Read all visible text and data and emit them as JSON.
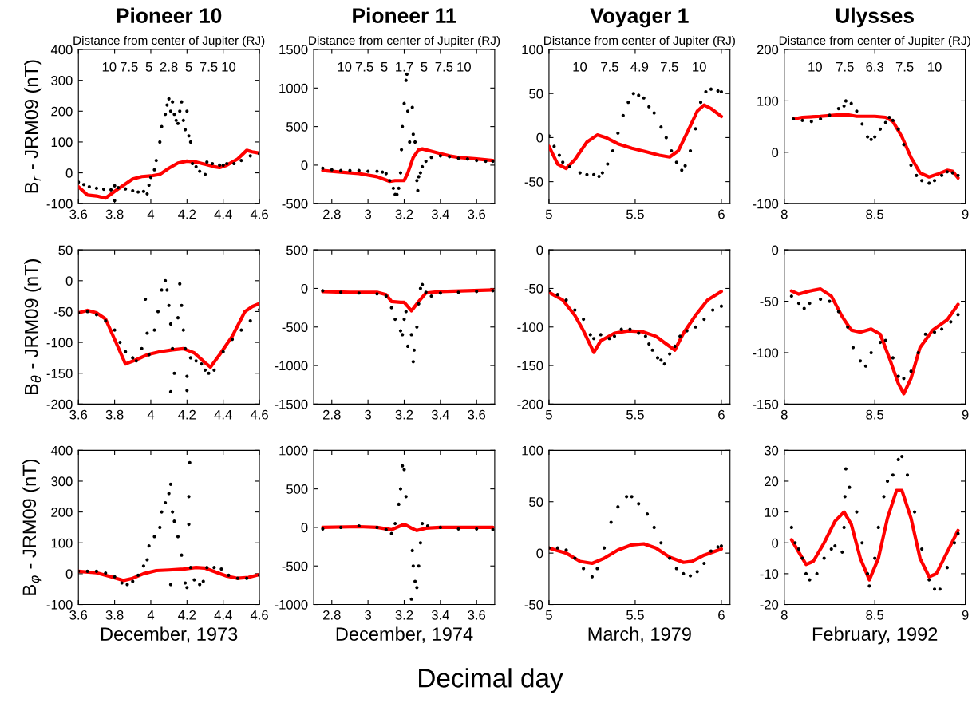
{
  "chart_data": [
    {
      "type": "scatter",
      "title": "Pioneer 10",
      "ylabel": "B$_{r}$ - JRM09 (nT)",
      "xlim": [
        3.6,
        4.6
      ],
      "xticks": [
        3.6,
        3.8,
        4,
        4.2,
        4.4,
        4.6
      ],
      "ylim": [
        -100,
        400
      ],
      "yticks": [
        -100,
        0,
        100,
        200,
        300,
        400
      ],
      "grid": false,
      "annotations": [
        "Distance from center of Jupiter (RJ)",
        "10",
        "7.5",
        "5",
        "2.8",
        "5",
        "7.5",
        "10"
      ],
      "series": [
        {
          "marker": "circle",
          "color": "#000000",
          "x": [
            3.6,
            3.63,
            3.66,
            3.7,
            3.74,
            3.78,
            3.8,
            3.8,
            3.82,
            3.86,
            3.9,
            3.93,
            3.96,
            3.98,
            3.99,
            4.0,
            4.02,
            4.03,
            4.05,
            4.06,
            4.08,
            4.09,
            4.1,
            4.11,
            4.12,
            4.13,
            4.14,
            4.15,
            4.16,
            4.17,
            4.18,
            4.19,
            4.2,
            4.21,
            4.22,
            4.23,
            4.25,
            4.27,
            4.3,
            4.31,
            4.34,
            4.38,
            4.4,
            4.42,
            4.46,
            4.5,
            4.55,
            4.6
          ],
          "values": [
            -30,
            -38,
            -45,
            -50,
            -53,
            -55,
            -42,
            -90,
            -48,
            -52,
            -58,
            -62,
            -60,
            -68,
            -40,
            -15,
            10,
            40,
            100,
            150,
            190,
            220,
            240,
            200,
            230,
            190,
            170,
            160,
            200,
            230,
            170,
            140,
            200,
            120,
            100,
            30,
            20,
            5,
            -5,
            35,
            30,
            25,
            25,
            30,
            30,
            40,
            55,
            62
          ]
        },
        {
          "type": "line",
          "color": "#ff0000",
          "x": [
            3.6,
            3.65,
            3.7,
            3.75,
            3.8,
            3.85,
            3.9,
            3.95,
            4.0,
            4.05,
            4.1,
            4.15,
            4.2,
            4.25,
            4.3,
            4.35,
            4.38,
            4.42,
            4.48,
            4.53,
            4.56,
            4.6
          ],
          "values": [
            -45,
            -72,
            -75,
            -82,
            -60,
            -40,
            -20,
            -12,
            -10,
            -5,
            15,
            32,
            38,
            35,
            28,
            20,
            17,
            25,
            45,
            73,
            68,
            64
          ]
        }
      ]
    },
    {
      "type": "scatter",
      "title": "Pioneer 11",
      "xlim": [
        2.7,
        3.7
      ],
      "xticks": [
        2.8,
        3,
        3.2,
        3.4,
        3.6
      ],
      "ylim": [
        -500,
        1500
      ],
      "yticks": [
        -500,
        0,
        500,
        1000,
        1500
      ],
      "grid": false,
      "annotations": [
        "Distance from center of Jupiter (RJ)",
        "10",
        "7.5",
        "5",
        "1.7",
        "5",
        "7.5",
        "10"
      ],
      "series": [
        {
          "marker": "circle",
          "color": "#000000",
          "x": [
            2.75,
            2.8,
            2.85,
            2.9,
            2.95,
            3.0,
            3.05,
            3.08,
            3.1,
            3.12,
            3.14,
            3.15,
            3.16,
            3.17,
            3.18,
            3.185,
            3.19,
            3.2,
            3.21,
            3.215,
            3.22,
            3.23,
            3.245,
            3.25,
            3.26,
            3.27,
            3.275,
            3.28,
            3.29,
            3.3,
            3.32,
            3.35,
            3.4,
            3.45,
            3.5,
            3.55,
            3.6,
            3.65,
            3.69
          ],
          "values": [
            -40,
            -60,
            -70,
            -70,
            -70,
            -80,
            -80,
            -90,
            -110,
            -200,
            -300,
            -380,
            -380,
            -300,
            -100,
            200,
            500,
            800,
            1100,
            1180,
            700,
            300,
            750,
            400,
            300,
            -200,
            -330,
            -150,
            -100,
            -20,
            50,
            100,
            120,
            110,
            90,
            80,
            60,
            50,
            50
          ]
        },
        {
          "type": "line",
          "color": "#ff0000",
          "x": [
            2.75,
            2.85,
            2.95,
            3.05,
            3.12,
            3.15,
            3.2,
            3.22,
            3.25,
            3.28,
            3.3,
            3.35,
            3.4,
            3.45,
            3.5,
            3.6,
            3.69
          ],
          "values": [
            -70,
            -90,
            -110,
            -150,
            -210,
            -200,
            -200,
            -100,
            100,
            200,
            210,
            180,
            150,
            120,
            100,
            80,
            60
          ]
        }
      ]
    },
    {
      "type": "scatter",
      "title": "Voyager 1",
      "xlim": [
        5,
        6.05
      ],
      "xticks": [
        5,
        5.5,
        6
      ],
      "ylim": [
        -75,
        100
      ],
      "yticks": [
        -50,
        0,
        50,
        100
      ],
      "grid": false,
      "annotations": [
        "Distance from center of Jupiter (RJ)",
        "10",
        "7.5",
        "4.9",
        "7.5",
        "10"
      ],
      "series": [
        {
          "marker": "circle",
          "color": "#000000",
          "x": [
            5.0,
            5.03,
            5.06,
            5.08,
            5.12,
            5.18,
            5.22,
            5.26,
            5.29,
            5.31,
            5.34,
            5.37,
            5.4,
            5.43,
            5.46,
            5.49,
            5.52,
            5.55,
            5.58,
            5.61,
            5.65,
            5.68,
            5.71,
            5.74,
            5.77,
            5.79,
            5.82,
            5.85,
            5.88,
            5.91,
            5.94,
            5.98,
            6.0
          ],
          "values": [
            2,
            -10,
            -20,
            -28,
            -33,
            -40,
            -42,
            -42,
            -44,
            -40,
            -30,
            -15,
            5,
            25,
            40,
            50,
            48,
            45,
            35,
            28,
            12,
            0,
            -15,
            -28,
            -37,
            -32,
            -15,
            10,
            40,
            52,
            55,
            53,
            52
          ]
        },
        {
          "type": "line",
          "color": "#ff0000",
          "x": [
            5.0,
            5.05,
            5.1,
            5.15,
            5.22,
            5.28,
            5.33,
            5.4,
            5.48,
            5.56,
            5.64,
            5.7,
            5.75,
            5.8,
            5.86,
            5.9,
            5.94,
            6.0
          ],
          "values": [
            -10,
            -30,
            -35,
            -25,
            -5,
            3,
            0,
            -7,
            -12,
            -16,
            -20,
            -22,
            -15,
            5,
            30,
            37,
            33,
            24
          ]
        }
      ]
    },
    {
      "type": "scatter",
      "title": "Ulysses",
      "xlim": [
        8,
        9
      ],
      "xticks": [
        8,
        8.5,
        9
      ],
      "ylim": [
        -100,
        200
      ],
      "yticks": [
        -100,
        0,
        100,
        200
      ],
      "grid": false,
      "annotations": [
        "Distance from center of Jupiter (RJ)",
        "10",
        "7.5",
        "6.3",
        "7.5",
        "10"
      ],
      "series": [
        {
          "marker": "circle",
          "color": "#000000",
          "x": [
            8.05,
            8.1,
            8.15,
            8.2,
            8.25,
            8.3,
            8.33,
            8.34,
            8.37,
            8.4,
            8.43,
            8.46,
            8.48,
            8.5,
            8.53,
            8.56,
            8.58,
            8.6,
            8.63,
            8.66,
            8.7,
            8.73,
            8.76,
            8.8,
            8.83,
            8.87,
            8.9,
            8.93,
            8.96
          ],
          "values": [
            65,
            62,
            60,
            65,
            72,
            85,
            90,
            100,
            95,
            80,
            55,
            30,
            25,
            30,
            45,
            58,
            68,
            62,
            45,
            15,
            -25,
            -45,
            -55,
            -60,
            -55,
            -45,
            -38,
            -40,
            -45
          ]
        },
        {
          "type": "line",
          "color": "#ff0000",
          "x": [
            8.05,
            8.1,
            8.2,
            8.3,
            8.35,
            8.4,
            8.5,
            8.56,
            8.6,
            8.65,
            8.7,
            8.75,
            8.8,
            8.85,
            8.9,
            8.93,
            8.96
          ],
          "values": [
            65,
            68,
            70,
            73,
            73,
            70,
            70,
            68,
            60,
            30,
            -10,
            -40,
            -48,
            -42,
            -35,
            -37,
            -50
          ]
        }
      ]
    },
    {
      "type": "scatter",
      "ylabel": "B$_{θ}$ - JRM09 (nT)",
      "xlim": [
        3.6,
        4.6
      ],
      "xticks": [
        3.6,
        3.8,
        4,
        4.2,
        4.4,
        4.6
      ],
      "ylim": [
        -200,
        50
      ],
      "yticks": [
        -200,
        -150,
        -100,
        -50,
        0,
        50
      ],
      "grid": false,
      "series": [
        {
          "marker": "circle",
          "color": "#000000",
          "x": [
            3.6,
            3.65,
            3.7,
            3.75,
            3.8,
            3.83,
            3.86,
            3.9,
            3.92,
            3.95,
            3.97,
            3.98,
            3.99,
            4.02,
            4.04,
            4.06,
            4.08,
            4.09,
            4.1,
            4.11,
            4.11,
            4.12,
            4.13,
            4.15,
            4.16,
            4.17,
            4.18,
            4.19,
            4.2,
            4.2,
            4.22,
            4.25,
            4.28,
            4.3,
            4.32,
            4.35,
            4.4,
            4.45,
            4.5,
            4.55,
            4.6
          ],
          "values": [
            -52,
            -50,
            -55,
            -65,
            -80,
            -100,
            -115,
            -125,
            -130,
            -110,
            -30,
            -85,
            -120,
            -80,
            -50,
            -15,
            0,
            -15,
            -40,
            -70,
            -180,
            -110,
            -150,
            -60,
            -5,
            -40,
            -80,
            -110,
            -155,
            -178,
            -125,
            -130,
            -135,
            -145,
            -150,
            -145,
            -115,
            -95,
            -80,
            -65,
            -47
          ]
        },
        {
          "type": "line",
          "color": "#ff0000",
          "x": [
            3.6,
            3.65,
            3.7,
            3.75,
            3.8,
            3.86,
            3.92,
            3.98,
            4.05,
            4.12,
            4.18,
            4.24,
            4.3,
            4.33,
            4.38,
            4.45,
            4.52,
            4.56,
            4.6
          ],
          "values": [
            -52,
            -48,
            -52,
            -62,
            -95,
            -135,
            -128,
            -120,
            -115,
            -112,
            -110,
            -117,
            -133,
            -140,
            -120,
            -90,
            -50,
            -42,
            -37
          ]
        }
      ]
    },
    {
      "type": "scatter",
      "xlim": [
        2.7,
        3.7
      ],
      "xticks": [
        2.8,
        3,
        3.2,
        3.4,
        3.6
      ],
      "ylim": [
        -1500,
        500
      ],
      "yticks": [
        -1500,
        -1000,
        -500,
        0,
        500
      ],
      "grid": false,
      "series": [
        {
          "marker": "circle",
          "color": "#000000",
          "x": [
            2.75,
            2.85,
            2.95,
            3.05,
            3.1,
            3.13,
            3.15,
            3.18,
            3.19,
            3.2,
            3.21,
            3.22,
            3.24,
            3.25,
            3.255,
            3.27,
            3.28,
            3.29,
            3.3,
            3.32,
            3.35,
            3.4,
            3.5,
            3.6,
            3.69
          ],
          "values": [
            -30,
            -50,
            -60,
            -70,
            -100,
            -250,
            -400,
            -550,
            -600,
            -400,
            -300,
            -750,
            -600,
            -950,
            -800,
            -500,
            -200,
            0,
            50,
            -50,
            -100,
            -60,
            -50,
            -40,
            -30
          ]
        },
        {
          "type": "line",
          "color": "#ff0000",
          "x": [
            2.75,
            2.9,
            3.05,
            3.1,
            3.13,
            3.18,
            3.2,
            3.24,
            3.28,
            3.32,
            3.4,
            3.55,
            3.69
          ],
          "values": [
            -40,
            -50,
            -50,
            -80,
            -170,
            -180,
            -180,
            -290,
            -170,
            -60,
            -40,
            -30,
            -20
          ]
        }
      ]
    },
    {
      "type": "scatter",
      "xlim": [
        5,
        6.05
      ],
      "xticks": [
        5,
        5.5,
        6
      ],
      "ylim": [
        -200,
        0
      ],
      "yticks": [
        -200,
        -150,
        -100,
        -50,
        0
      ],
      "grid": false,
      "series": [
        {
          "marker": "circle",
          "color": "#000000",
          "x": [
            5.0,
            5.05,
            5.1,
            5.15,
            5.2,
            5.24,
            5.26,
            5.3,
            5.35,
            5.38,
            5.42,
            5.47,
            5.52,
            5.56,
            5.58,
            5.6,
            5.63,
            5.65,
            5.67,
            5.7,
            5.73,
            5.76,
            5.8,
            5.85,
            5.9,
            5.95,
            6.0
          ],
          "values": [
            -53,
            -58,
            -65,
            -78,
            -90,
            -110,
            -115,
            -110,
            -115,
            -112,
            -103,
            -103,
            -108,
            -112,
            -122,
            -130,
            -140,
            -143,
            -148,
            -135,
            -125,
            -112,
            -105,
            -100,
            -90,
            -78,
            -73
          ]
        },
        {
          "type": "line",
          "color": "#ff0000",
          "x": [
            5.0,
            5.08,
            5.15,
            5.2,
            5.26,
            5.3,
            5.38,
            5.46,
            5.54,
            5.62,
            5.68,
            5.73,
            5.78,
            5.85,
            5.92,
            6.0
          ],
          "values": [
            -55,
            -65,
            -85,
            -105,
            -133,
            -118,
            -108,
            -105,
            -106,
            -112,
            -122,
            -130,
            -108,
            -85,
            -65,
            -54
          ]
        }
      ]
    },
    {
      "type": "scatter",
      "xlim": [
        8,
        9
      ],
      "xticks": [
        8,
        8.5,
        9
      ],
      "ylim": [
        -150,
        0
      ],
      "yticks": [
        -150,
        -100,
        -50,
        0
      ],
      "grid": false,
      "series": [
        {
          "marker": "circle",
          "color": "#000000",
          "x": [
            8.04,
            8.08,
            8.11,
            8.14,
            8.2,
            8.25,
            8.3,
            8.35,
            8.38,
            8.42,
            8.45,
            8.48,
            8.53,
            8.56,
            8.6,
            8.63,
            8.66,
            8.7,
            8.74,
            8.78,
            8.83,
            8.87,
            8.92,
            8.96
          ],
          "values": [
            -45,
            -52,
            -57,
            -52,
            -48,
            -50,
            -60,
            -75,
            -95,
            -108,
            -113,
            -100,
            -90,
            -88,
            -105,
            -123,
            -125,
            -118,
            -100,
            -82,
            -80,
            -77,
            -70,
            -63
          ]
        },
        {
          "type": "line",
          "color": "#ff0000",
          "x": [
            8.04,
            8.08,
            8.14,
            8.2,
            8.26,
            8.32,
            8.37,
            8.42,
            8.48,
            8.53,
            8.58,
            8.63,
            8.66,
            8.7,
            8.75,
            8.82,
            8.9,
            8.96
          ],
          "values": [
            -40,
            -43,
            -40,
            -38,
            -45,
            -65,
            -78,
            -80,
            -77,
            -82,
            -105,
            -130,
            -140,
            -125,
            -95,
            -78,
            -68,
            -53
          ]
        }
      ]
    },
    {
      "type": "scatter",
      "ylabel": "B$_{φ}$ - JRM09 (nT)",
      "xlabel": "December, 1973",
      "xlim": [
        3.6,
        4.6
      ],
      "xticks": [
        3.6,
        3.8,
        4,
        4.2,
        4.4,
        4.6
      ],
      "ylim": [
        -100,
        400
      ],
      "yticks": [
        -100,
        0,
        100,
        200,
        300,
        400
      ],
      "grid": false,
      "series": [
        {
          "marker": "circle",
          "color": "#000000",
          "x": [
            3.6,
            3.65,
            3.7,
            3.75,
            3.8,
            3.84,
            3.87,
            3.9,
            3.93,
            3.96,
            3.98,
            3.99,
            4.02,
            4.05,
            4.06,
            4.08,
            4.1,
            4.11,
            4.11,
            4.12,
            4.13,
            4.15,
            4.17,
            4.19,
            4.2,
            4.21,
            4.21,
            4.215,
            4.22,
            4.24,
            4.27,
            4.29,
            4.31,
            4.35,
            4.39,
            4.43,
            4.48,
            4.53,
            4.6
          ],
          "values": [
            8,
            8,
            8,
            2,
            -10,
            -30,
            -35,
            -25,
            -5,
            25,
            45,
            90,
            120,
            150,
            200,
            230,
            260,
            290,
            -35,
            200,
            170,
            120,
            60,
            -30,
            -45,
            160,
            250,
            360,
            20,
            -20,
            -35,
            -25,
            20,
            20,
            15,
            -5,
            -15,
            -15,
            -5
          ]
        },
        {
          "type": "line",
          "color": "#ff0000",
          "x": [
            3.6,
            3.7,
            3.78,
            3.85,
            3.9,
            3.96,
            4.03,
            4.1,
            4.18,
            4.25,
            4.3,
            4.36,
            4.42,
            4.48,
            4.54,
            4.6
          ],
          "values": [
            8,
            3,
            -10,
            -22,
            -15,
            0,
            10,
            12,
            15,
            20,
            18,
            5,
            -8,
            -15,
            -12,
            -3
          ]
        }
      ]
    },
    {
      "type": "scatter",
      "xlabel": "December, 1974",
      "xlim": [
        2.7,
        3.7
      ],
      "xticks": [
        2.8,
        3,
        3.2,
        3.4,
        3.6
      ],
      "ylim": [
        -1000,
        1000
      ],
      "yticks": [
        -1000,
        -500,
        0,
        500,
        1000
      ],
      "grid": false,
      "annotations": [
        "Decimal day"
      ],
      "series": [
        {
          "marker": "circle",
          "color": "#000000",
          "x": [
            2.75,
            2.85,
            2.95,
            3.05,
            3.1,
            3.13,
            3.15,
            3.17,
            3.18,
            3.19,
            3.2,
            3.21,
            3.24,
            3.245,
            3.25,
            3.26,
            3.27,
            3.28,
            3.29,
            3.3,
            3.33,
            3.4,
            3.5,
            3.6,
            3.69
          ],
          "values": [
            -20,
            0,
            20,
            0,
            -30,
            -80,
            50,
            300,
            500,
            800,
            750,
            400,
            -930,
            -300,
            -500,
            -700,
            -780,
            -500,
            -200,
            50,
            20,
            0,
            -20,
            -20,
            -30
          ]
        },
        {
          "type": "line",
          "color": "#ff0000",
          "x": [
            2.75,
            2.95,
            3.05,
            3.13,
            3.16,
            3.19,
            3.21,
            3.24,
            3.27,
            3.32,
            3.4,
            3.55,
            3.69
          ],
          "values": [
            0,
            10,
            0,
            -30,
            0,
            30,
            30,
            -10,
            -40,
            -10,
            0,
            0,
            0
          ]
        }
      ]
    },
    {
      "type": "scatter",
      "xlabel": "March, 1979",
      "xlim": [
        5,
        6.05
      ],
      "xticks": [
        5,
        5.5,
        6
      ],
      "ylim": [
        -50,
        100
      ],
      "yticks": [
        -50,
        0,
        50,
        100
      ],
      "grid": false,
      "series": [
        {
          "marker": "circle",
          "color": "#000000",
          "x": [
            5.0,
            5.05,
            5.1,
            5.15,
            5.2,
            5.25,
            5.28,
            5.32,
            5.36,
            5.4,
            5.45,
            5.48,
            5.52,
            5.57,
            5.61,
            5.65,
            5.7,
            5.74,
            5.78,
            5.82,
            5.86,
            5.9,
            5.94,
            5.98,
            6.0
          ],
          "values": [
            5,
            5,
            3,
            -5,
            -15,
            -23,
            -15,
            5,
            30,
            45,
            55,
            55,
            48,
            38,
            25,
            10,
            -5,
            -15,
            -20,
            -22,
            -18,
            -10,
            2,
            6,
            7
          ]
        },
        {
          "type": "line",
          "color": "#ff0000",
          "x": [
            5.0,
            5.1,
            5.18,
            5.25,
            5.32,
            5.4,
            5.48,
            5.55,
            5.62,
            5.7,
            5.78,
            5.83,
            5.9,
            6.0
          ],
          "values": [
            5,
            0,
            -8,
            -10,
            -5,
            3,
            8,
            9,
            5,
            -4,
            -9,
            -8,
            -2,
            4
          ]
        }
      ]
    },
    {
      "type": "scatter",
      "xlabel": "February, 1992",
      "xlim": [
        8,
        9
      ],
      "xticks": [
        8,
        8.5,
        9
      ],
      "ylim": [
        -20,
        30
      ],
      "yticks": [
        -20,
        -10,
        0,
        10,
        20,
        30
      ],
      "grid": false,
      "series": [
        {
          "marker": "circle",
          "color": "#000000",
          "x": [
            8.04,
            8.06,
            8.08,
            8.1,
            8.12,
            8.14,
            8.18,
            8.22,
            8.26,
            8.28,
            8.32,
            8.33,
            8.335,
            8.34,
            8.36,
            8.4,
            8.43,
            8.46,
            8.47,
            8.5,
            8.52,
            8.55,
            8.57,
            8.6,
            8.63,
            8.65,
            8.68,
            8.72,
            8.76,
            8.8,
            8.83,
            8.86,
            8.9,
            8.94,
            8.96
          ],
          "values": [
            5,
            0,
            -2,
            -5,
            -10,
            -12,
            -10,
            -5,
            -2,
            -1,
            -3,
            5,
            15,
            24,
            18,
            10,
            0,
            -10,
            -14,
            -5,
            5,
            15,
            20,
            22,
            27,
            28,
            22,
            10,
            -2,
            -12,
            -15,
            -15,
            -8,
            0,
            3
          ]
        },
        {
          "type": "line",
          "color": "#ff0000",
          "x": [
            8.04,
            8.08,
            8.12,
            8.16,
            8.22,
            8.28,
            8.33,
            8.37,
            8.42,
            8.47,
            8.52,
            8.57,
            8.62,
            8.65,
            8.7,
            8.75,
            8.8,
            8.84,
            8.9,
            8.96
          ],
          "values": [
            1,
            -3,
            -7,
            -6,
            0,
            7,
            10,
            6,
            -5,
            -12,
            -5,
            8,
            17,
            17,
            8,
            -5,
            -11,
            -10,
            -3,
            4
          ]
        }
      ]
    }
  ]
}
